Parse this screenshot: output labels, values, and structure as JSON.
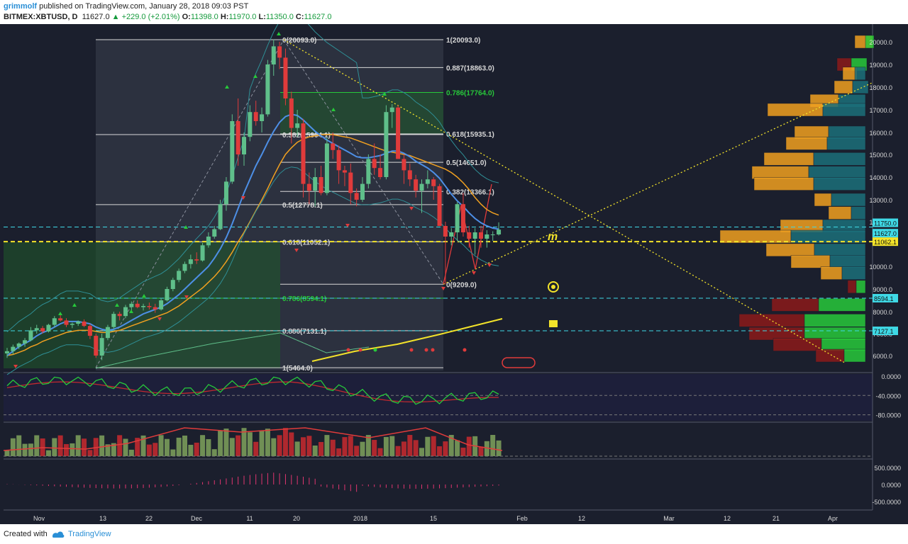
{
  "header": {
    "author": "grimmolf",
    "published_text": "published on TradingView.com, January 28, 2018 09:03 PST",
    "symbol": "BITMEX:XBTUSD, D",
    "last": "11627.0",
    "change": "▲ +229.0 (+2.01%)",
    "o_label": "O:",
    "o_value": "11398.0",
    "h_label": "H:",
    "h_value": "11970.0",
    "l_label": "L:",
    "l_value": "11350.0",
    "c_label": "C:",
    "c_value": "11627.0"
  },
  "footer": {
    "created": "Created with",
    "brand": "TradingView"
  },
  "colors": {
    "background": "#1b1f2d",
    "up": "#5fbf8a",
    "down": "#e03b3b",
    "sma_blue": "#4d8fe6",
    "sma_orange": "#f0a020",
    "sma_yellow": "#f3e32a",
    "fib_green": "#27c93a",
    "cyan": "#3fd9e6"
  },
  "chart_data": [
    {
      "type": "candlestick",
      "title": "",
      "x_tick_labels": [
        "Nov",
        "13",
        "22",
        "Dec",
        "11",
        "20",
        "2018",
        "15",
        "Feb",
        "12",
        "Mar",
        "12",
        "21",
        "Apr"
      ],
      "y_tick_labels": [
        "20000.0",
        "19000.0",
        "18000.0",
        "17000.0",
        "16000.0",
        "15000.0",
        "14000.0",
        "13000.0",
        "12000.0",
        "10000.0",
        "9000.0",
        "8000.0",
        "7000.0",
        "6000.0"
      ],
      "price_tags": [
        "11750.0",
        "11627.0",
        "11062.1",
        "8594.1",
        "7127.1"
      ],
      "ylim": [
        5000,
        20600
      ],
      "fib_levels": [
        {
          "label": "1(20093.0)",
          "value": 20093
        },
        {
          "label": "0.887(18863.0)",
          "value": 18863
        },
        {
          "label": "0.786(17764.0)",
          "value": 17764
        },
        {
          "label": "0.618(15935.1)",
          "value": 15935.1
        },
        {
          "label": "0.5(14651.0)",
          "value": 14651
        },
        {
          "label": "0.382(13366.1)",
          "value": 13366.1
        },
        {
          "label": "0(9209.0)",
          "value": 9209
        },
        {
          "label": "0(20093.0)",
          "value": 20093
        },
        {
          "label": "0.382(15904.1)",
          "value": 15904.1
        },
        {
          "label": "0.5(12778.1)",
          "value": 12778.1
        },
        {
          "label": "0.618(11052.1)",
          "value": 11052.1
        },
        {
          "label": "0.786(8594.1)",
          "value": 8594.1
        },
        {
          "label": "0.886(7131.1)",
          "value": 7131.1
        },
        {
          "label": "1(5464.0)",
          "value": 5464
        }
      ],
      "candles": [
        [
          6100,
          6350,
          5900,
          6200
        ],
        [
          6200,
          6500,
          6050,
          6400
        ],
        [
          6400,
          6600,
          6300,
          6550
        ],
        [
          6550,
          6800,
          6400,
          6700
        ],
        [
          6700,
          7300,
          6650,
          7150
        ],
        [
          7150,
          7400,
          7000,
          7250
        ],
        [
          7250,
          7350,
          7000,
          7100
        ],
        [
          7100,
          7450,
          7050,
          7400
        ],
        [
          7400,
          7800,
          7300,
          7700
        ],
        [
          7700,
          7900,
          7550,
          7600
        ],
        [
          7600,
          7700,
          7300,
          7400
        ],
        [
          7400,
          7500,
          7250,
          7450
        ],
        [
          7450,
          7600,
          7350,
          7550
        ],
        [
          7550,
          7650,
          7300,
          7350
        ],
        [
          7350,
          7450,
          6750,
          6900
        ],
        [
          6900,
          7000,
          5900,
          6000
        ],
        [
          6000,
          7000,
          5800,
          6800
        ],
        [
          6800,
          7400,
          6700,
          7300
        ],
        [
          7300,
          8000,
          7200,
          7900
        ],
        [
          7900,
          8000,
          7600,
          7800
        ],
        [
          7800,
          8300,
          7700,
          8200
        ],
        [
          8200,
          8450,
          8050,
          8350
        ],
        [
          8350,
          8500,
          8150,
          8200
        ],
        [
          8200,
          8350,
          8050,
          8250
        ],
        [
          8250,
          8400,
          8100,
          8200
        ],
        [
          8200,
          8350,
          7950,
          8100
        ],
        [
          8100,
          8600,
          8050,
          8500
        ],
        [
          8500,
          9100,
          8450,
          9000
        ],
        [
          9000,
          9500,
          8900,
          9400
        ],
        [
          9400,
          9900,
          9300,
          9800
        ],
        [
          9800,
          10200,
          9700,
          10100
        ],
        [
          10100,
          10500,
          9900,
          10300
        ],
        [
          10300,
          10600,
          10100,
          10250
        ],
        [
          10250,
          11000,
          10200,
          10900
        ],
        [
          10900,
          11500,
          10800,
          11300
        ],
        [
          11300,
          11800,
          11200,
          11650
        ],
        [
          11650,
          13000,
          11600,
          12800
        ],
        [
          12800,
          14000,
          12500,
          13800
        ],
        [
          13800,
          16800,
          13700,
          16500
        ],
        [
          16500,
          17500,
          14500,
          15000
        ],
        [
          15000,
          16000,
          14500,
          15800
        ],
        [
          15800,
          17200,
          15600,
          16900
        ],
        [
          16900,
          17400,
          16300,
          16500
        ],
        [
          16500,
          17100,
          16000,
          16800
        ],
        [
          16800,
          19200,
          16700,
          19000
        ],
        [
          19000,
          20100,
          18500,
          19800
        ],
        [
          19800,
          20000,
          18800,
          19300
        ],
        [
          19300,
          19700,
          17200,
          17500
        ],
        [
          17500,
          17800,
          15500,
          16200
        ],
        [
          16200,
          17000,
          15800,
          16400
        ],
        [
          16400,
          16600,
          13100,
          13700
        ],
        [
          13700,
          14200,
          12800,
          13400
        ],
        [
          13400,
          14400,
          12700,
          14000
        ],
        [
          14000,
          14500,
          13200,
          13300
        ],
        [
          13300,
          15800,
          13200,
          15500
        ],
        [
          15500,
          16000,
          14800,
          15200
        ],
        [
          15200,
          15400,
          13700,
          14300
        ],
        [
          14300,
          14500,
          13600,
          14200
        ],
        [
          14200,
          14600,
          12800,
          13300
        ],
        [
          13300,
          13500,
          12700,
          13000
        ],
        [
          13000,
          14000,
          12900,
          13700
        ],
        [
          13700,
          15000,
          13500,
          14800
        ],
        [
          14800,
          15500,
          14100,
          14400
        ],
        [
          14400,
          15000,
          13900,
          14000
        ],
        [
          14000,
          17200,
          13900,
          16900
        ],
        [
          16900,
          17250,
          16200,
          17100
        ],
        [
          17100,
          17200,
          14800,
          14800
        ],
        [
          14800,
          15000,
          13700,
          14300
        ],
        [
          14300,
          14600,
          13600,
          13900
        ],
        [
          13900,
          14100,
          13100,
          13400
        ],
        [
          13400,
          13900,
          12400,
          13700
        ],
        [
          13700,
          14300,
          13500,
          13900
        ],
        [
          13900,
          14000,
          13000,
          13600
        ],
        [
          13600,
          13700,
          11800,
          11800
        ],
        [
          11800,
          12000,
          9200,
          11300
        ],
        [
          11300,
          11700,
          10900,
          11500
        ],
        [
          11500,
          12900,
          11100,
          12800
        ],
        [
          12800,
          13300,
          11300,
          11500
        ],
        [
          11500,
          11800,
          10800,
          11200
        ],
        [
          11200,
          11700,
          10500,
          11500
        ],
        [
          11500,
          11800,
          10800,
          11200
        ],
        [
          11200,
          11600,
          10800,
          11400
        ],
        [
          11400,
          11550,
          11100,
          11400
        ],
        [
          11400,
          11970,
          11350,
          11627
        ]
      ],
      "sma_blue": [
        6000,
        6200,
        6400,
        6550,
        6700,
        6900,
        7050,
        7150,
        7300,
        7450,
        7550,
        7550,
        7550,
        7500,
        7450,
        7300,
        7200,
        7150,
        7200,
        7300,
        7450,
        7600,
        7750,
        7900,
        8000,
        8100,
        8200,
        8350,
        8550,
        8750,
        9000,
        9250,
        9500,
        9750,
        10000,
        10350,
        10750,
        11250,
        11900,
        12600,
        13300,
        13900,
        14500,
        15000,
        15550,
        16050,
        16450,
        16700,
        16800,
        16750,
        16550,
        16300,
        16050,
        15850,
        15650,
        15500,
        15350,
        15200,
        15050,
        14900,
        14850,
        14850,
        14900,
        14950,
        15050,
        15150,
        15150,
        15050,
        14900,
        14700,
        14550,
        14400,
        14200,
        13950,
        13600,
        13250,
        12950,
        12700,
        12400,
        12150,
        11950,
        11800,
        11700,
        11650
      ],
      "sma_orange": [
        6000,
        6050,
        6150,
        6250,
        6400,
        6500,
        6650,
        6750,
        6850,
        6950,
        7050,
        7100,
        7150,
        7150,
        7150,
        7100,
        7050,
        7050,
        7100,
        7150,
        7250,
        7350,
        7450,
        7550,
        7650,
        7750,
        7850,
        7950,
        8100,
        8250,
        8450,
        8650,
        8850,
        9050,
        9300,
        9550,
        9850,
        10200,
        10600,
        11050,
        11500,
        12000,
        12500,
        13000,
        13500,
        14050,
        14550,
        15000,
        15300,
        15550,
        15700,
        15800,
        15850,
        15900,
        15900,
        15900,
        15850,
        15800,
        15750,
        15650,
        15550,
        15450,
        15350,
        15250,
        15150,
        15100,
        15050,
        15000,
        14950,
        14850,
        14750,
        14650,
        14550,
        14450,
        14350,
        14200,
        14000,
        13750,
        13450,
        13100,
        12800,
        12550,
        12400,
        12300
      ]
    },
    {
      "type": "line",
      "title": "",
      "y_tick_labels": [
        "0.0000",
        "-40.0000",
        "-80.0000"
      ],
      "ylim": [
        -85,
        5
      ]
    },
    {
      "type": "bar",
      "title": "",
      "y_tick_labels": []
    },
    {
      "type": "bar",
      "title": "",
      "y_tick_labels": [
        "500.0000",
        "0.0000",
        "-500.0000"
      ],
      "ylim": [
        -700,
        700
      ]
    }
  ]
}
